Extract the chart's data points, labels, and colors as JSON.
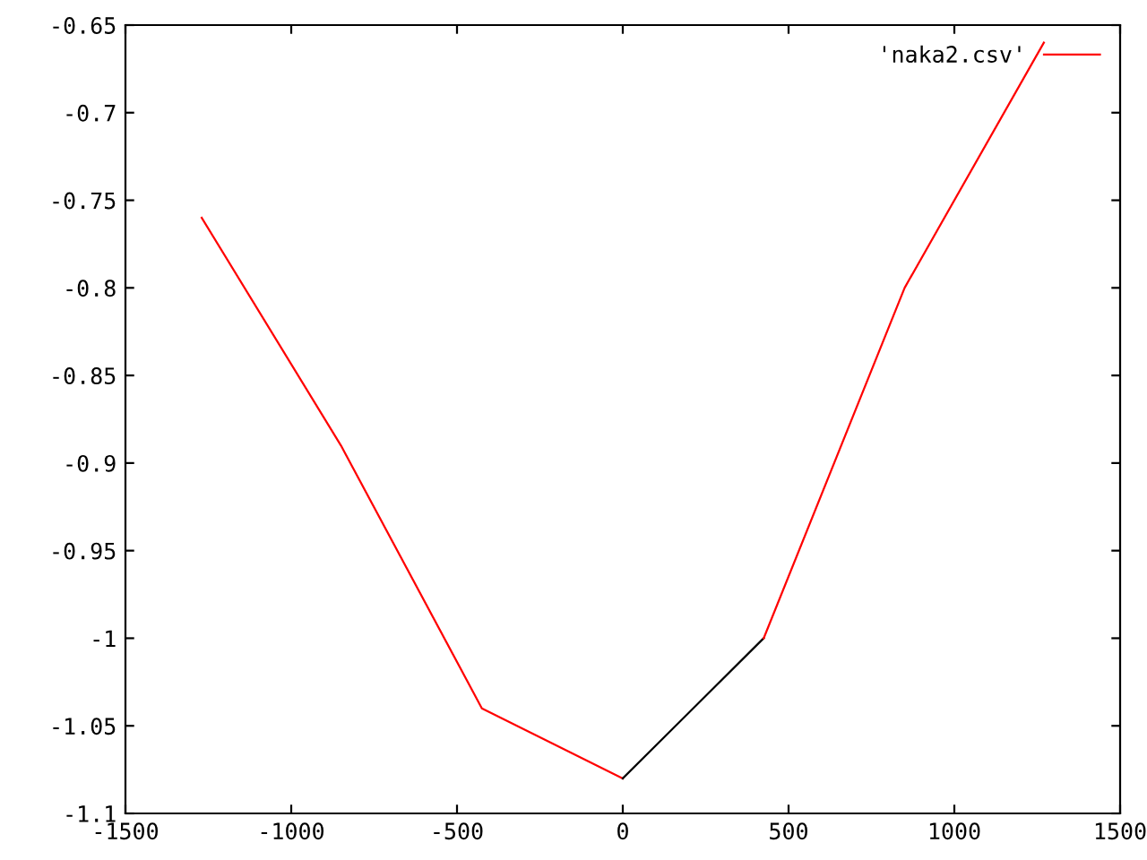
{
  "chart_data": {
    "type": "line",
    "series": [
      {
        "name": "'naka2.csv'",
        "color": "#ff0000",
        "x": [
          -1270,
          -850,
          -425,
          0
        ],
        "values": [
          -0.76,
          -0.89,
          -1.04,
          -1.08
        ]
      },
      {
        "color": "#000000",
        "x": [
          0,
          425
        ],
        "values": [
          -1.08,
          -1.0
        ]
      },
      {
        "color": "#ff0000",
        "x": [
          425,
          850,
          1270
        ],
        "values": [
          -1.0,
          -0.8,
          -0.66
        ]
      }
    ],
    "xlim": [
      -1500,
      1500
    ],
    "xticks": [
      -1500,
      -1000,
      -500,
      0,
      500,
      1000,
      1500
    ],
    "ylim": [
      -1.1,
      -0.65
    ],
    "yticks": [
      -1.1,
      -1.05,
      -1,
      -0.95,
      -0.9,
      -0.85,
      -0.8,
      -0.75,
      -0.7,
      -0.65
    ],
    "grid": false,
    "legend": "top right",
    "marker": "none",
    "line_style": "solid"
  }
}
